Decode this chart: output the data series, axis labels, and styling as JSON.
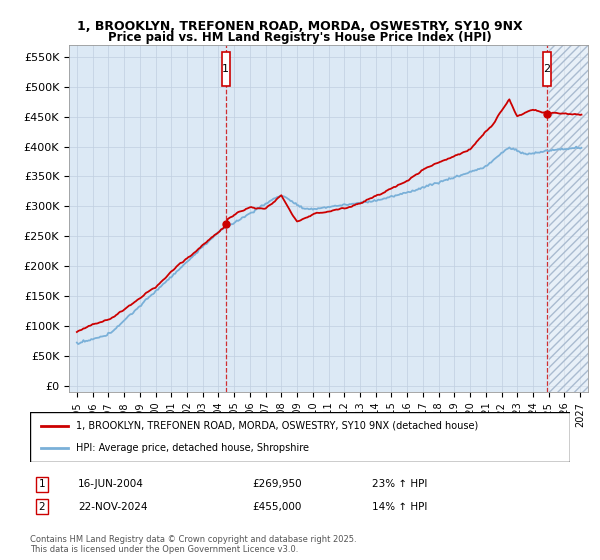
{
  "title": "1, BROOKLYN, TREFONEN ROAD, MORDA, OSWESTRY, SY10 9NX",
  "subtitle": "Price paid vs. HM Land Registry's House Price Index (HPI)",
  "ylabel_ticks": [
    0,
    50000,
    100000,
    150000,
    200000,
    250000,
    300000,
    350000,
    400000,
    450000,
    500000,
    550000
  ],
  "ylabel_labels": [
    "£0",
    "£50K",
    "£100K",
    "£150K",
    "£200K",
    "£250K",
    "£300K",
    "£350K",
    "£400K",
    "£450K",
    "£500K",
    "£550K"
  ],
  "xlim": [
    1994.5,
    2027.5
  ],
  "ylim": [
    -10000,
    570000
  ],
  "background_color": "#ffffff",
  "plot_bg_color": "#dce9f5",
  "hpi_line_color": "#7ab0d8",
  "price_line_color": "#cc0000",
  "marker1_x": 2004.46,
  "marker1_y": 269950,
  "marker2_x": 2024.9,
  "marker2_y": 455000,
  "transaction1": [
    "1",
    "16-JUN-2004",
    "£269,950",
    "23% ↑ HPI"
  ],
  "transaction2": [
    "2",
    "22-NOV-2024",
    "£455,000",
    "14% ↑ HPI"
  ],
  "legend_line1": "1, BROOKLYN, TREFONEN ROAD, MORDA, OSWESTRY, SY10 9NX (detached house)",
  "legend_line2": "HPI: Average price, detached house, Shropshire",
  "copyright": "Contains HM Land Registry data © Crown copyright and database right 2025.\nThis data is licensed under the Open Government Licence v3.0.",
  "grid_color": "#c0cfe0",
  "xticks": [
    1995,
    1996,
    1997,
    1998,
    1999,
    2000,
    2001,
    2002,
    2003,
    2004,
    2005,
    2006,
    2007,
    2008,
    2009,
    2010,
    2011,
    2012,
    2013,
    2014,
    2015,
    2016,
    2017,
    2018,
    2019,
    2020,
    2021,
    2022,
    2023,
    2024,
    2025,
    2026,
    2027
  ],
  "forecast_start": 2025.0
}
